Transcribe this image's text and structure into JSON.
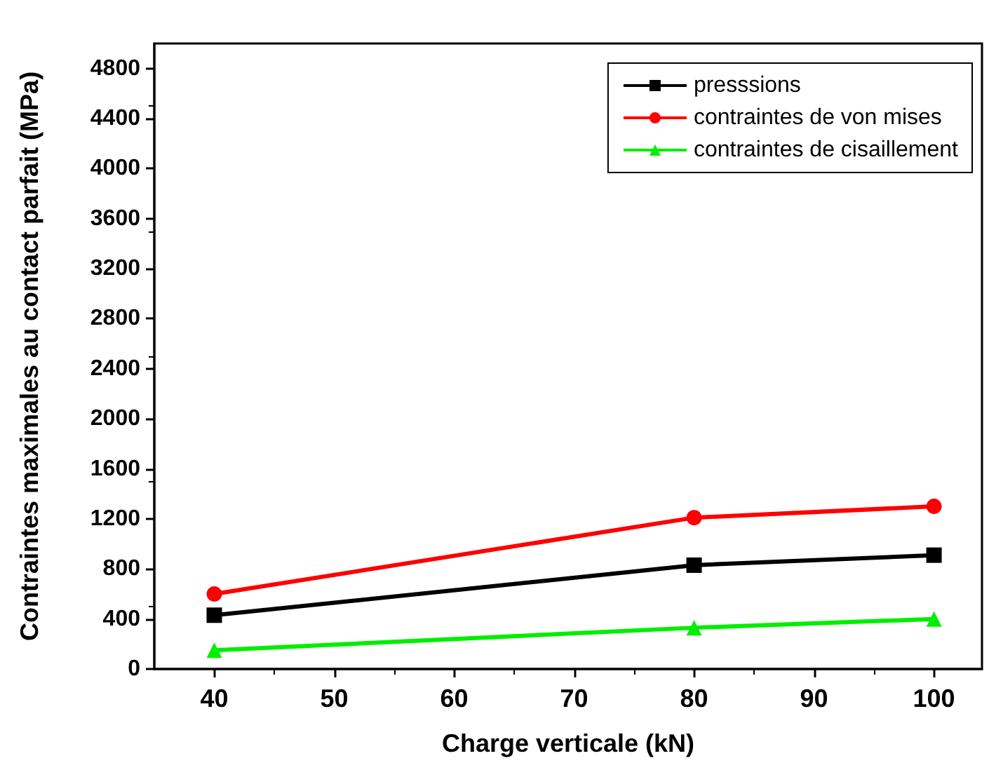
{
  "chart_data": {
    "type": "line",
    "xlabel": "Charge verticale (kN)",
    "ylabel": "Contraintes maximales au contact parfait (MPa)",
    "x": [
      40,
      80,
      100
    ],
    "series": [
      {
        "name": "presssions",
        "color": "#000000",
        "marker": "square",
        "values": [
          430,
          830,
          910
        ]
      },
      {
        "name": "contraintes de von mises",
        "color": "#ff0000",
        "marker": "circle",
        "values": [
          600,
          1210,
          1300
        ]
      },
      {
        "name": "contraintes de cisaillement",
        "color": "#00ee00",
        "marker": "triangle",
        "values": [
          150,
          330,
          400
        ]
      }
    ],
    "xlim": [
      35,
      104
    ],
    "xticks": [
      40,
      50,
      60,
      70,
      80,
      90,
      100
    ],
    "ylim": [
      0,
      5000
    ],
    "yticks": [
      0,
      400,
      800,
      1200,
      1600,
      2000,
      2400,
      2800,
      3200,
      3600,
      4000,
      4400,
      4800
    ],
    "grid": false,
    "legend": "top right",
    "line_style": "solid"
  }
}
